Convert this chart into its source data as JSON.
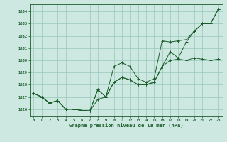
{
  "title": "Graphe pression niveau de la mer (hPa)",
  "bg_color": "#cce8e0",
  "grid_color": "#99c8bc",
  "line_color": "#1a5c2a",
  "marker_color": "#1a5c2a",
  "xlim": [
    -0.5,
    23.5
  ],
  "ylim": [
    1025.4,
    1034.6
  ],
  "yticks": [
    1026,
    1027,
    1028,
    1029,
    1030,
    1031,
    1032,
    1033,
    1034
  ],
  "xticks": [
    0,
    1,
    2,
    3,
    4,
    5,
    6,
    7,
    8,
    9,
    10,
    11,
    12,
    13,
    14,
    15,
    16,
    17,
    18,
    19,
    20,
    21,
    22,
    23
  ],
  "series": [
    [
      1027.3,
      1027.0,
      1026.5,
      1026.7,
      1026.0,
      1026.0,
      1025.9,
      1025.85,
      1026.8,
      1027.0,
      1028.2,
      1028.6,
      1028.4,
      1028.0,
      1028.0,
      1028.2,
      1029.5,
      1030.0,
      1030.1,
      1030.0,
      1030.2,
      1030.1,
      1030.0,
      1030.1
    ],
    [
      1027.3,
      1027.0,
      1026.5,
      1026.7,
      1026.0,
      1026.0,
      1025.9,
      1025.85,
      1027.6,
      1027.0,
      1028.2,
      1028.6,
      1028.4,
      1028.0,
      1028.0,
      1028.2,
      1029.5,
      1030.7,
      1030.2,
      1031.5,
      1032.4,
      1033.0,
      1033.0,
      1034.2
    ],
    [
      1027.3,
      1027.0,
      1026.5,
      1026.7,
      1026.0,
      1026.0,
      1025.9,
      1025.85,
      1027.6,
      1027.0,
      1029.5,
      1029.8,
      1029.5,
      1028.5,
      1028.2,
      1028.5,
      1031.6,
      1031.5,
      1031.6,
      1031.7,
      1032.4,
      1033.0,
      1033.0,
      1034.2
    ]
  ]
}
